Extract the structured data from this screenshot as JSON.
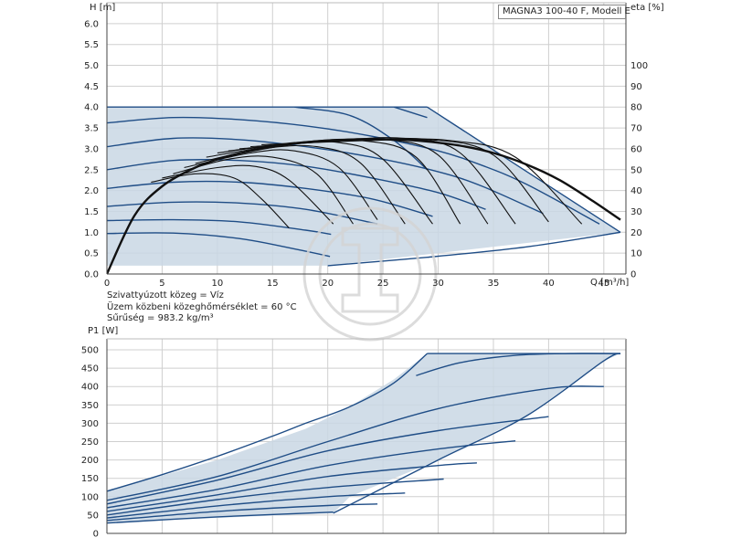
{
  "chart_data": [
    {
      "type": "line",
      "title": "MAGNA3 100-40 F, Modell E",
      "xlabel": "Q [m³/h]",
      "ylabel": "H [m]",
      "y2label": "eta [%]",
      "xlim": [
        0,
        47
      ],
      "xticks": [
        0,
        5,
        10,
        15,
        20,
        25,
        30,
        35,
        40,
        45
      ],
      "xticks_labeled": [
        0,
        5,
        10,
        15,
        20,
        25,
        30,
        35,
        40,
        45
      ],
      "ylim": [
        0,
        6.5
      ],
      "yticks": [
        0.0,
        0.5,
        1.0,
        1.5,
        2.0,
        2.5,
        3.0,
        3.5,
        4.0,
        4.5,
        5.0,
        5.5,
        6.0
      ],
      "y2lim": [
        0,
        130
      ],
      "y2ticks": [
        0,
        10,
        20,
        30,
        40,
        50,
        60,
        70,
        80,
        90,
        100
      ],
      "grid": true,
      "region": {
        "x": [
          0,
          29,
          46.5,
          46.5,
          20,
          0
        ],
        "y": [
          4.0,
          4.0,
          1.0,
          1.0,
          0.2,
          0.2
        ]
      },
      "series": [
        {
          "x": [
            0,
            29
          ],
          "y": [
            4.0,
            4.0
          ]
        },
        {
          "x": [
            17,
            22,
            26,
            29
          ],
          "y": [
            4.0,
            3.8,
            3.2,
            2.5
          ]
        },
        {
          "x": [
            26,
            29
          ],
          "y": [
            4.0,
            3.75
          ]
        },
        {
          "x": [
            0,
            6,
            12,
            18,
            24,
            30,
            34,
            38,
            44.6
          ],
          "y": [
            3.62,
            3.75,
            3.7,
            3.55,
            3.3,
            2.95,
            2.6,
            2.15,
            1.2
          ]
        },
        {
          "x": [
            0,
            6,
            12,
            18,
            24,
            30,
            34,
            39.5
          ],
          "y": [
            3.05,
            3.25,
            3.22,
            3.05,
            2.8,
            2.45,
            2.1,
            1.45
          ]
        },
        {
          "x": [
            0,
            6,
            12,
            18,
            24,
            30,
            34.3
          ],
          "y": [
            2.5,
            2.72,
            2.72,
            2.58,
            2.3,
            1.95,
            1.55
          ]
        },
        {
          "x": [
            0,
            6,
            12,
            18,
            24,
            29.5
          ],
          "y": [
            2.05,
            2.2,
            2.2,
            2.05,
            1.8,
            1.38
          ]
        },
        {
          "x": [
            0,
            6,
            12,
            18,
            24.5
          ],
          "y": [
            1.62,
            1.72,
            1.7,
            1.55,
            1.2
          ]
        },
        {
          "x": [
            0,
            6,
            12,
            18,
            20.3
          ],
          "y": [
            1.28,
            1.3,
            1.25,
            1.05,
            0.95
          ]
        },
        {
          "x": [
            0,
            6,
            12,
            17,
            20.2
          ],
          "y": [
            0.97,
            0.98,
            0.85,
            0.6,
            0.42
          ]
        },
        {
          "x": [
            20,
            29,
            38,
            46.5
          ],
          "y": [
            0.2,
            0.4,
            0.65,
            1.0
          ]
        },
        {
          "x": [
            29,
            46.5
          ],
          "y": [
            4.0,
            1.0
          ]
        },
        {
          "x": [
            0,
            2.5,
            5,
            8,
            11,
            14,
            17,
            20,
            23,
            26,
            29,
            32,
            35,
            38,
            41,
            44,
            46.5
          ],
          "y": [
            0,
            28,
            42,
            51,
            56.5,
            60,
            62.5,
            64,
            64.5,
            64.5,
            63.5,
            61.5,
            58,
            52.5,
            45,
            35,
            26
          ],
          "axis": "eta"
        },
        {
          "x": [
            4,
            8,
            11.5,
            14,
            16.5
          ],
          "y": [
            44,
            48,
            46,
            36,
            22
          ],
          "axis": "eta"
        },
        {
          "x": [
            5,
            10,
            13.5,
            16.5,
            20.5
          ],
          "y": [
            46,
            51,
            51.5,
            45,
            24
          ],
          "axis": "eta"
        },
        {
          "x": [
            6,
            11,
            15,
            19,
            22.3
          ],
          "y": [
            48,
            55,
            56,
            48,
            24
          ],
          "axis": "eta"
        },
        {
          "x": [
            7,
            13,
            17,
            21,
            24.5
          ],
          "y": [
            51,
            58,
            59,
            51,
            26
          ],
          "axis": "eta"
        },
        {
          "x": [
            8,
            14,
            19,
            23,
            27
          ],
          "y": [
            53,
            60,
            61,
            53,
            24
          ],
          "axis": "eta"
        },
        {
          "x": [
            9,
            16,
            21,
            25,
            29.5
          ],
          "y": [
            56,
            62,
            63,
            55,
            24
          ],
          "axis": "eta"
        },
        {
          "x": [
            10,
            17,
            23,
            28,
            32
          ],
          "y": [
            58,
            63,
            64,
            56,
            24
          ],
          "axis": "eta"
        },
        {
          "x": [
            11,
            19,
            25,
            30,
            34.5
          ],
          "y": [
            59,
            63.5,
            64.5,
            57,
            24
          ],
          "axis": "eta"
        },
        {
          "x": [
            12,
            21,
            27,
            32,
            37
          ],
          "y": [
            60,
            64,
            65,
            58,
            24
          ],
          "axis": "eta"
        },
        {
          "x": [
            13,
            22,
            29,
            35,
            40
          ],
          "y": [
            61,
            64,
            64.5,
            57,
            25
          ],
          "axis": "eta"
        },
        {
          "x": [
            14,
            24,
            31,
            37,
            43
          ],
          "y": [
            62,
            64,
            64,
            56,
            24
          ],
          "axis": "eta"
        }
      ],
      "annotations": [
        "Szivattyúzott közeg = Víz",
        "Üzem közbeni közeghőmérséklet = 60 °C",
        "Sűrűség = 983.2 kg/m³"
      ]
    },
    {
      "type": "line",
      "xlabel": "",
      "ylabel": "P1 [W]",
      "xlim": [
        0,
        47
      ],
      "xticks": [
        0,
        5,
        10,
        15,
        20,
        25,
        30,
        35,
        40,
        45
      ],
      "ylim": [
        0,
        530
      ],
      "yticks": [
        0,
        50,
        100,
        150,
        200,
        250,
        300,
        350,
        400,
        450,
        500
      ],
      "grid": true,
      "region": {
        "x": [
          0,
          10,
          18,
          22,
          26,
          29,
          46.5,
          45,
          38,
          30,
          22,
          20.5,
          0
        ],
        "y": [
          115,
          200,
          285,
          345,
          420,
          490,
          490,
          470,
          320,
          200,
          100,
          55,
          30
        ]
      },
      "series": [
        {
          "x": [
            0,
            5,
            10,
            15,
            18,
            22,
            26,
            29
          ],
          "y": [
            115,
            160,
            210,
            265,
            300,
            345,
            410,
            490
          ]
        },
        {
          "x": [
            29,
            46.5
          ],
          "y": [
            490,
            490
          ]
        },
        {
          "x": [
            28,
            32,
            37,
            42,
            46.5
          ],
          "y": [
            430,
            465,
            485,
            490,
            490
          ]
        },
        {
          "x": [
            0,
            10,
            20,
            30,
            40,
            45
          ],
          "y": [
            90,
            155,
            250,
            340,
            395,
            400
          ]
        },
        {
          "x": [
            0,
            10,
            20,
            30,
            40
          ],
          "y": [
            80,
            145,
            225,
            280,
            318
          ]
        },
        {
          "x": [
            0,
            10,
            20,
            30,
            37
          ],
          "y": [
            70,
            120,
            185,
            230,
            252
          ]
        },
        {
          "x": [
            0,
            10,
            20,
            30,
            33.5
          ],
          "y": [
            60,
            105,
            155,
            185,
            192
          ]
        },
        {
          "x": [
            0,
            10,
            20,
            30.5
          ],
          "y": [
            50,
            92,
            125,
            148
          ]
        },
        {
          "x": [
            0,
            10,
            20,
            27
          ],
          "y": [
            42,
            75,
            100,
            110
          ]
        },
        {
          "x": [
            0,
            10,
            20,
            24.5
          ],
          "y": [
            35,
            60,
            76,
            80
          ]
        },
        {
          "x": [
            0,
            10,
            20.5
          ],
          "y": [
            28,
            45,
            58
          ]
        },
        {
          "x": [
            20.5,
            30,
            38,
            45,
            46.5
          ],
          "y": [
            55,
            200,
            320,
            470,
            490
          ]
        }
      ]
    }
  ]
}
